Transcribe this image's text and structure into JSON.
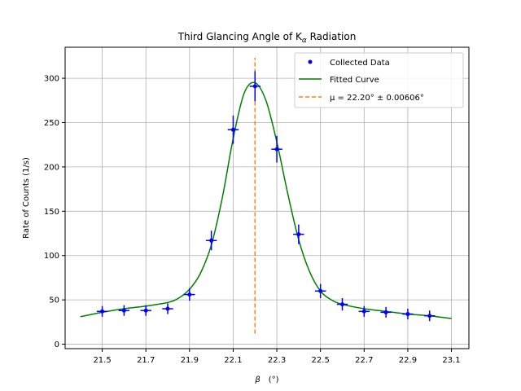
{
  "chart_data": {
    "type": "scatter",
    "title": "Third Glancing Angle of K",
    "title_subscript": "α",
    "title_suffix": " Radiation",
    "xlabel": "β",
    "xlabel_unit": "(°)",
    "ylabel": "Rate of Counts (1/s)",
    "xlim": [
      21.33,
      23.18
    ],
    "ylim": [
      -5,
      335
    ],
    "xticks": [
      "21.5",
      "21.7",
      "21.9",
      "22.1",
      "22.3",
      "22.5",
      "22.7",
      "22.9",
      "23.1"
    ],
    "xtick_values": [
      21.5,
      21.7,
      21.9,
      22.1,
      22.3,
      22.5,
      22.7,
      22.9,
      23.1
    ],
    "yticks": [
      "0",
      "50",
      "100",
      "150",
      "200",
      "250",
      "300"
    ],
    "ytick_values": [
      0,
      50,
      100,
      150,
      200,
      250,
      300
    ],
    "grid": true,
    "legend_position": "top-right",
    "series": [
      {
        "name": "Collected Data",
        "kind": "points",
        "color": "#0000ff",
        "x": [
          21.5,
          21.6,
          21.7,
          21.8,
          21.9,
          22.0,
          22.1,
          22.2,
          22.3,
          22.4,
          22.5,
          22.6,
          22.7,
          22.8,
          22.9,
          23.0
        ],
        "y": [
          37,
          38,
          38,
          40,
          56,
          117,
          242,
          291,
          220,
          124,
          60,
          45,
          37,
          36,
          34,
          32
        ],
        "yerr": [
          6,
          6,
          6,
          6,
          7,
          11,
          16,
          17,
          15,
          11,
          8,
          7,
          6,
          6,
          6,
          6
        ],
        "xerr": 0.025
      },
      {
        "name": "Fitted Curve",
        "kind": "line",
        "color": "#008000",
        "x": [
          21.4,
          21.5,
          21.6,
          21.7,
          21.8,
          21.85,
          21.9,
          21.95,
          22.0,
          22.05,
          22.1,
          22.15,
          22.2,
          22.25,
          22.3,
          22.35,
          22.4,
          22.45,
          22.5,
          22.55,
          22.6,
          22.7,
          22.8,
          22.9,
          23.0,
          23.1
        ],
        "y": [
          31,
          36,
          40,
          43,
          47,
          52,
          62,
          80,
          112,
          165,
          232,
          283,
          295,
          275,
          228,
          170,
          118,
          82,
          60,
          50,
          45,
          40,
          37,
          34,
          32,
          29
        ]
      },
      {
        "name": "μ = 22.20° ± 0.00606°",
        "kind": "vline",
        "color": "#ff7f0e",
        "x": 22.2,
        "y_range": [
          12,
          323
        ]
      }
    ]
  }
}
